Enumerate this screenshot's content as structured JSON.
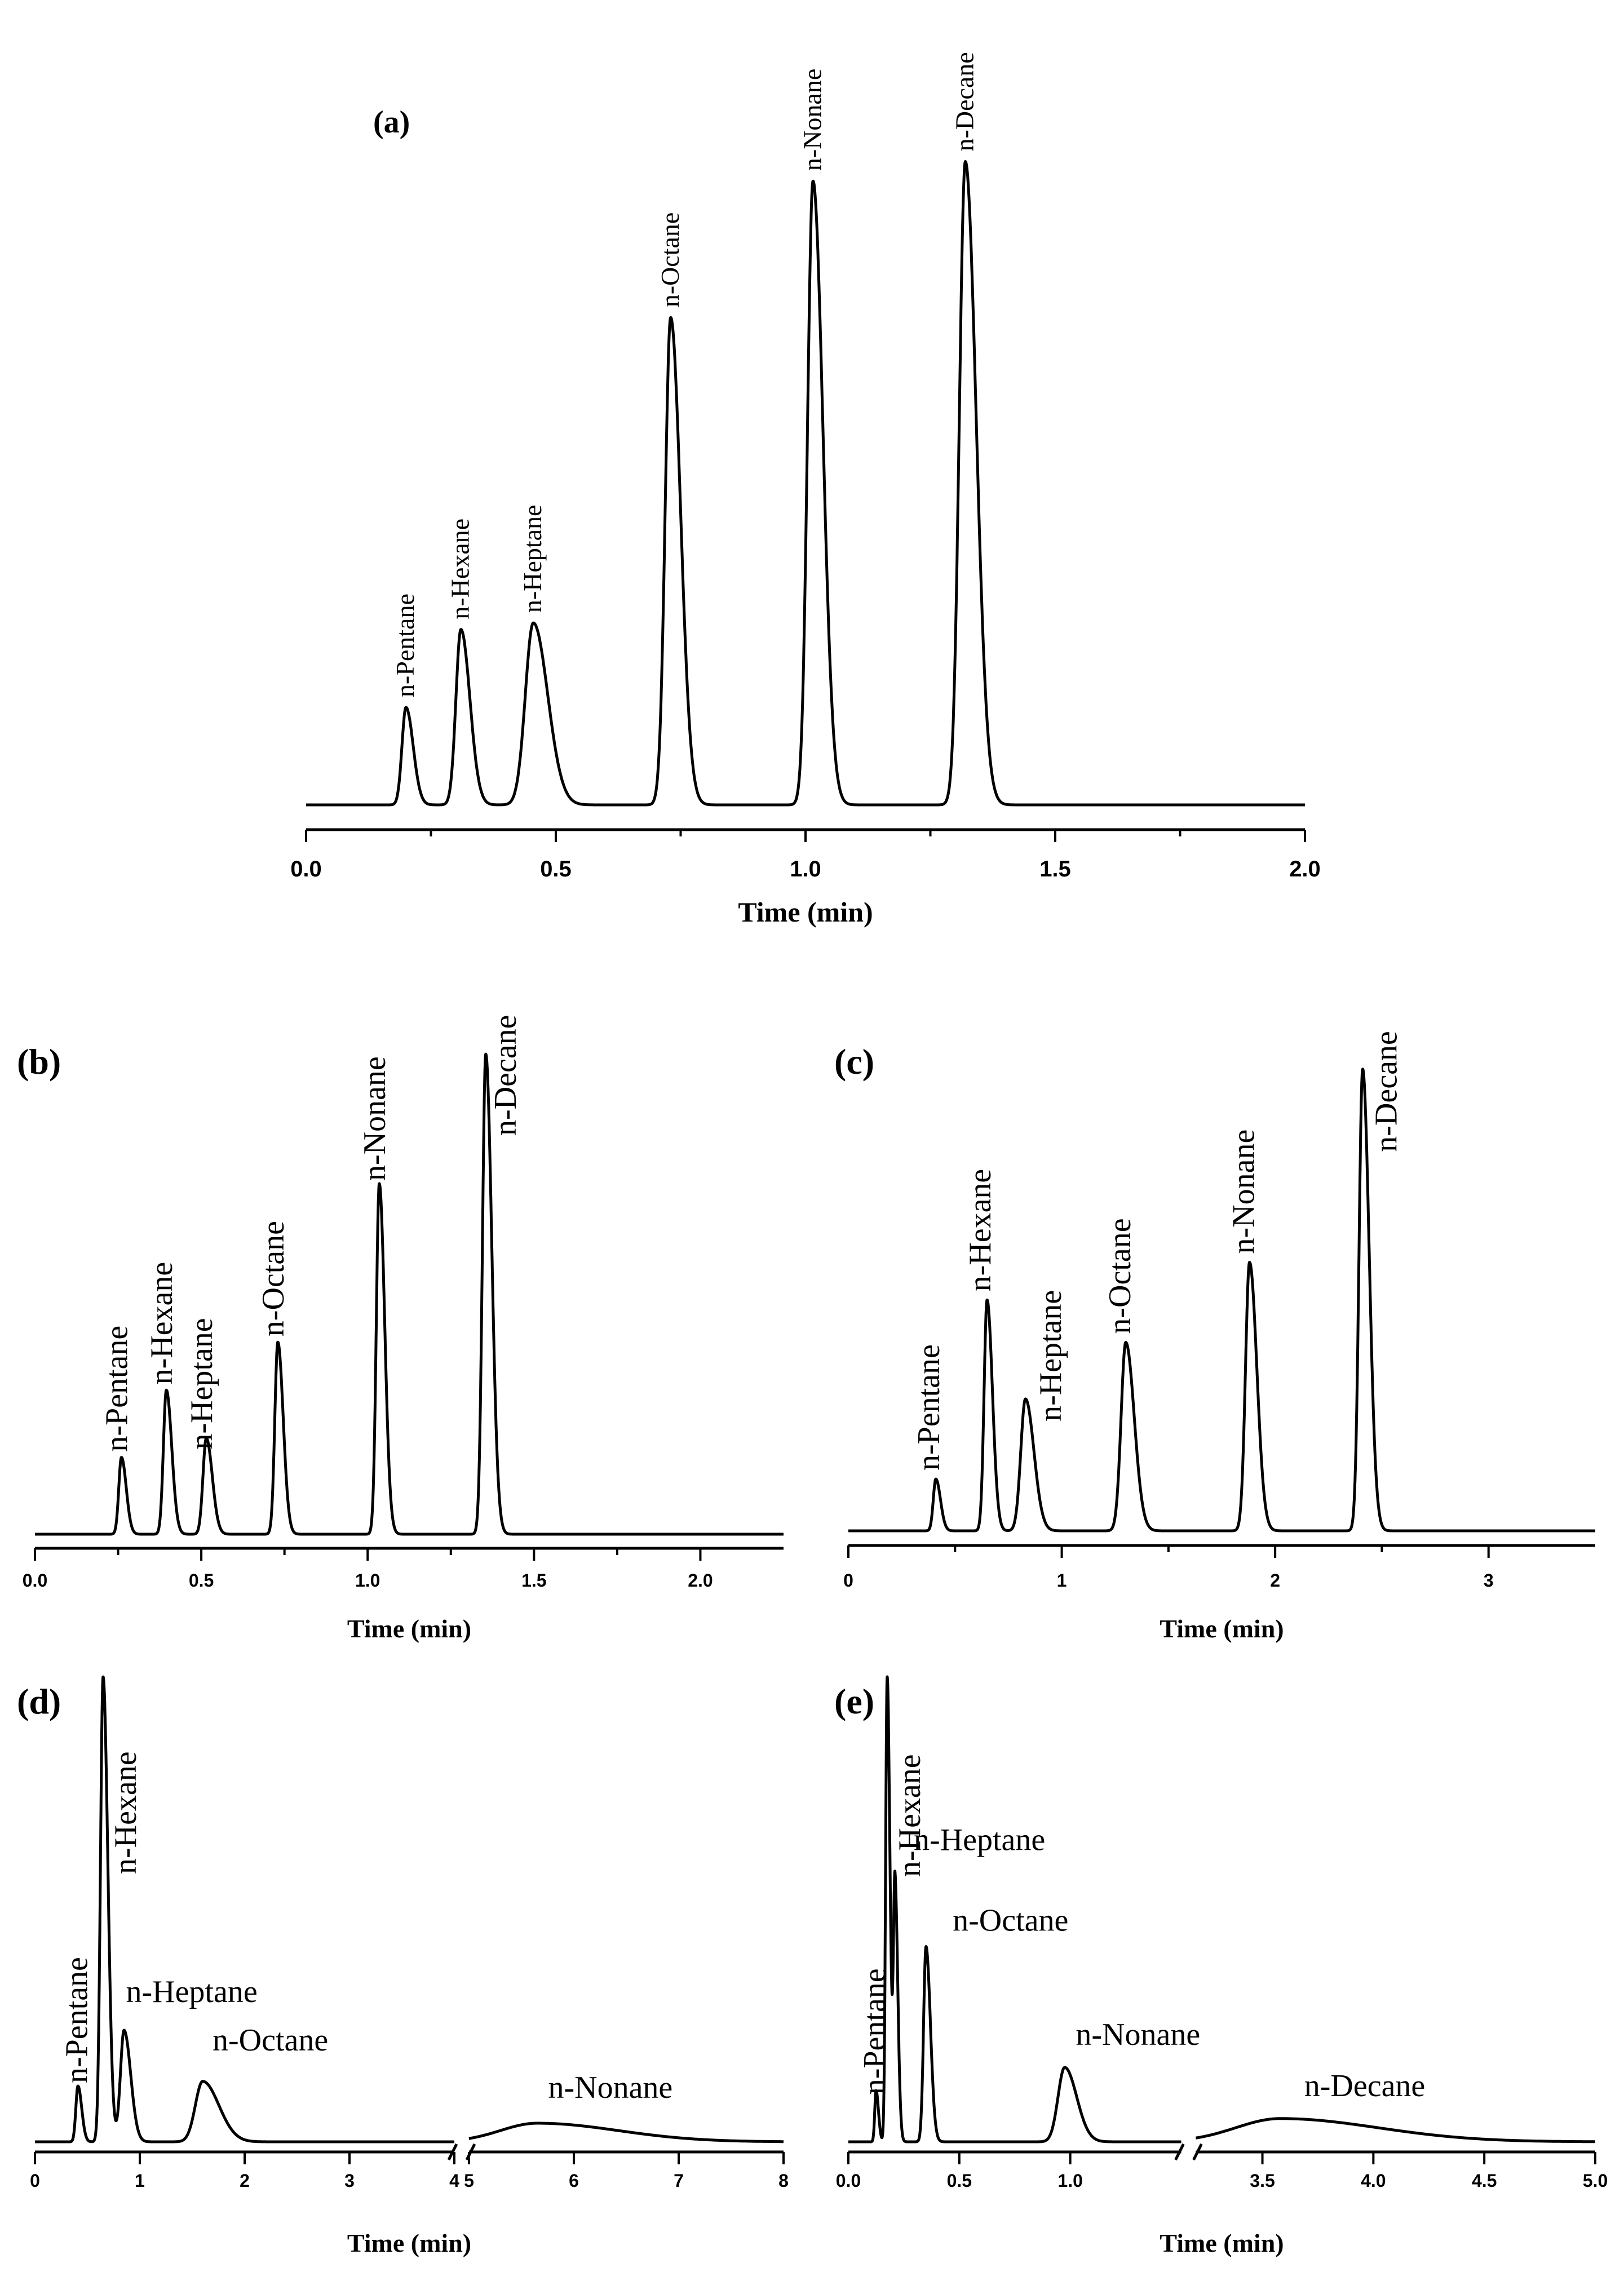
{
  "chart_data": [
    {
      "panel": "(a)",
      "type": "line",
      "title": "",
      "xlabel": "Time (min)",
      "ylabel": "",
      "xlim": [
        0.0,
        2.0
      ],
      "ylim": [
        0,
        100
      ],
      "ticks": [
        {
          "value": 0.0,
          "label": "0.0"
        },
        {
          "value": 0.5,
          "label": "0.5"
        },
        {
          "value": 1.0,
          "label": "1.0"
        },
        {
          "value": 1.5,
          "label": "1.5"
        },
        {
          "value": 2.0,
          "label": "2.0"
        }
      ],
      "baseline": 6,
      "peaks": [
        {
          "name": "n-Pentane",
          "rt": 0.2,
          "height": 15,
          "width": 0.008
        },
        {
          "name": "n-Hexane",
          "rt": 0.31,
          "height": 27,
          "width": 0.01
        },
        {
          "name": "n-Heptane",
          "rt": 0.455,
          "height": 28,
          "width": 0.016
        },
        {
          "name": "n-Octane",
          "rt": 0.73,
          "height": 75,
          "width": 0.011
        },
        {
          "name": "n-Nonane",
          "rt": 1.015,
          "height": 96,
          "width": 0.011
        },
        {
          "name": "n-Decane",
          "rt": 1.32,
          "height": 99,
          "width": 0.012
        }
      ]
    },
    {
      "panel": "(b)",
      "type": "line",
      "xlabel": "Time (min)",
      "xlim": [
        0.0,
        2.25
      ],
      "ylim": [
        0,
        100
      ],
      "ticks": [
        {
          "value": 0.0,
          "label": "0.0"
        },
        {
          "value": 0.5,
          "label": "0.5"
        },
        {
          "value": 1.0,
          "label": "1.0"
        },
        {
          "value": 1.5,
          "label": "1.5"
        },
        {
          "value": 2.0,
          "label": "2.0"
        }
      ],
      "baseline": 4,
      "peaks": [
        {
          "name": "n-Pentane",
          "rt": 0.26,
          "height": 16,
          "width": 0.008
        },
        {
          "name": "n-Hexane",
          "rt": 0.395,
          "height": 30,
          "width": 0.009
        },
        {
          "name": "n-Heptane",
          "rt": 0.515,
          "height": 20,
          "width": 0.01
        },
        {
          "name": "n-Octane",
          "rt": 0.73,
          "height": 40,
          "width": 0.009
        },
        {
          "name": "n-Nonane",
          "rt": 1.035,
          "height": 73,
          "width": 0.009
        },
        {
          "name": "n-Decane",
          "rt": 1.355,
          "height": 100,
          "width": 0.01
        }
      ]
    },
    {
      "panel": "(c)",
      "type": "line",
      "xlabel": "Time (min)",
      "xlim": [
        0.0,
        3.5
      ],
      "ylim": [
        0,
        100
      ],
      "ticks": [
        {
          "value": 0,
          "label": "0"
        },
        {
          "value": 1,
          "label": "1"
        },
        {
          "value": 2,
          "label": "2"
        },
        {
          "value": 3,
          "label": "3"
        }
      ],
      "baseline": 4,
      "peaks": [
        {
          "name": "n-Pentane",
          "rt": 0.41,
          "height": 11,
          "width": 0.012
        },
        {
          "name": "n-Hexane",
          "rt": 0.65,
          "height": 49,
          "width": 0.014
        },
        {
          "name": "n-Heptane",
          "rt": 0.83,
          "height": 28,
          "width": 0.022
        },
        {
          "name": "n-Octane",
          "rt": 1.3,
          "height": 40,
          "width": 0.022
        },
        {
          "name": "n-Nonane",
          "rt": 1.88,
          "height": 57,
          "width": 0.019
        },
        {
          "name": "n-Decane",
          "rt": 2.41,
          "height": 98,
          "width": 0.017
        }
      ]
    },
    {
      "panel": "(d)",
      "type": "line",
      "xlabel": "Time (min)",
      "xlim": [
        0,
        8
      ],
      "axis_break": [
        4.0,
        5.0
      ],
      "ylim": [
        0,
        100
      ],
      "ticks": [
        {
          "value": 0,
          "label": "0"
        },
        {
          "value": 1,
          "label": "1"
        },
        {
          "value": 2,
          "label": "2"
        },
        {
          "value": 3,
          "label": "3"
        },
        {
          "value": 4,
          "label": "4"
        },
        {
          "value": 5,
          "label": "5"
        },
        {
          "value": 6,
          "label": "6"
        },
        {
          "value": 7,
          "label": "7"
        },
        {
          "value": 8,
          "label": "8"
        }
      ],
      "baseline": 3,
      "peaks": [
        {
          "name": "n-Pentane",
          "rt": 0.41,
          "height": 12,
          "width": 0.02
        },
        {
          "name": "n-Hexane",
          "rt": 0.65,
          "height": 100,
          "width": 0.025
        },
        {
          "name": "n-Heptane",
          "rt": 0.85,
          "height": 24,
          "width": 0.035
        },
        {
          "name": "n-Octane",
          "rt": 1.6,
          "height": 13,
          "width": 0.07
        },
        {
          "name": "n-Nonane",
          "rt": 5.65,
          "height": 4,
          "width": 0.35
        }
      ]
    },
    {
      "panel": "(e)",
      "type": "line",
      "xlabel": "Time (min)",
      "xlim": [
        0.0,
        5.0
      ],
      "axis_break": [
        1.5,
        3.2
      ],
      "ylim": [
        0,
        100
      ],
      "ticks": [
        {
          "value": 0.0,
          "label": "0.0"
        },
        {
          "value": 0.5,
          "label": "0.5"
        },
        {
          "value": 1.0,
          "label": "1.0"
        },
        {
          "value": 3.5,
          "label": "3.5"
        },
        {
          "value": 4.0,
          "label": "4.0"
        },
        {
          "value": 4.5,
          "label": "4.5"
        },
        {
          "value": 5.0,
          "label": "5.0"
        }
      ],
      "baseline": 3,
      "peaks": [
        {
          "name": "n-Pentane",
          "rt": 0.125,
          "height": 11,
          "width": 0.006
        },
        {
          "name": "n-Hexane",
          "rt": 0.175,
          "height": 100,
          "width": 0.007
        },
        {
          "name": "n-Heptane",
          "rt": 0.21,
          "height": 56,
          "width": 0.007
        },
        {
          "name": "n-Octane",
          "rt": 0.35,
          "height": 42,
          "width": 0.011
        },
        {
          "name": "n-Nonane",
          "rt": 0.975,
          "height": 16,
          "width": 0.03
        },
        {
          "name": "n-Decane",
          "rt": 3.58,
          "height": 5,
          "width": 0.2
        }
      ]
    }
  ]
}
